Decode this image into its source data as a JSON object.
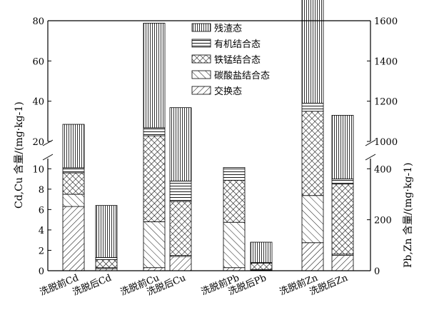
{
  "chart_data": {
    "type": "bar",
    "stacked": true,
    "categories": [
      "洗脱前Cd",
      "洗脱后Cd",
      "洗脱前Cu",
      "洗脱后Cu",
      "洗脱前Pb",
      "洗脱后Pb",
      "洗脱前Zn",
      "洗脱后Zn"
    ],
    "series": [
      {
        "name": "交换态",
        "values": [
          6.3,
          0.2,
          0.3,
          1.4,
          12,
          2,
          110,
          60
        ],
        "pattern": "hatch-diag"
      },
      {
        "name": "碳酸盐结合态",
        "values": [
          1.2,
          0.1,
          4.5,
          0.1,
          178,
          3,
          185,
          5
        ],
        "pattern": "hatch-back"
      },
      {
        "name": "铁锰结合态",
        "values": [
          2.1,
          0.8,
          18,
          5.3,
          165,
          25,
          855,
          275
        ],
        "pattern": "crosshatch"
      },
      {
        "name": "有机结合态",
        "values": [
          0.5,
          0.2,
          4,
          2,
          50,
          2,
          40,
          20
        ],
        "pattern": "horizontal"
      },
      {
        "name": "残渣态",
        "values": [
          18.4,
          5.1,
          52,
          28,
          255,
          80,
          1420,
          770
        ],
        "pattern": "vertical"
      }
    ],
    "axis_group": [
      "left",
      "left",
      "left",
      "left",
      "right",
      "right",
      "right",
      "right"
    ],
    "left_axis": {
      "title": "Cd,Cu 含量/(mg·kg-1)",
      "ticks_lower": [
        "0",
        "2",
        "4",
        "6",
        "8",
        "10"
      ],
      "ticks_upper": [
        "20",
        "40",
        "60",
        "80"
      ],
      "lower_range": [
        0,
        11
      ],
      "upper_range": [
        20,
        80
      ]
    },
    "right_axis": {
      "title": "Pb,Zn 含量/(mg·kg-1)",
      "ticks_lower": [
        "0",
        "200",
        "400"
      ],
      "ticks_upper": [
        "1000",
        "1200",
        "1400",
        "1600"
      ],
      "lower_range": [
        0,
        440
      ],
      "upper_range": [
        1000,
        1600
      ]
    },
    "legend_position": "top-center"
  }
}
